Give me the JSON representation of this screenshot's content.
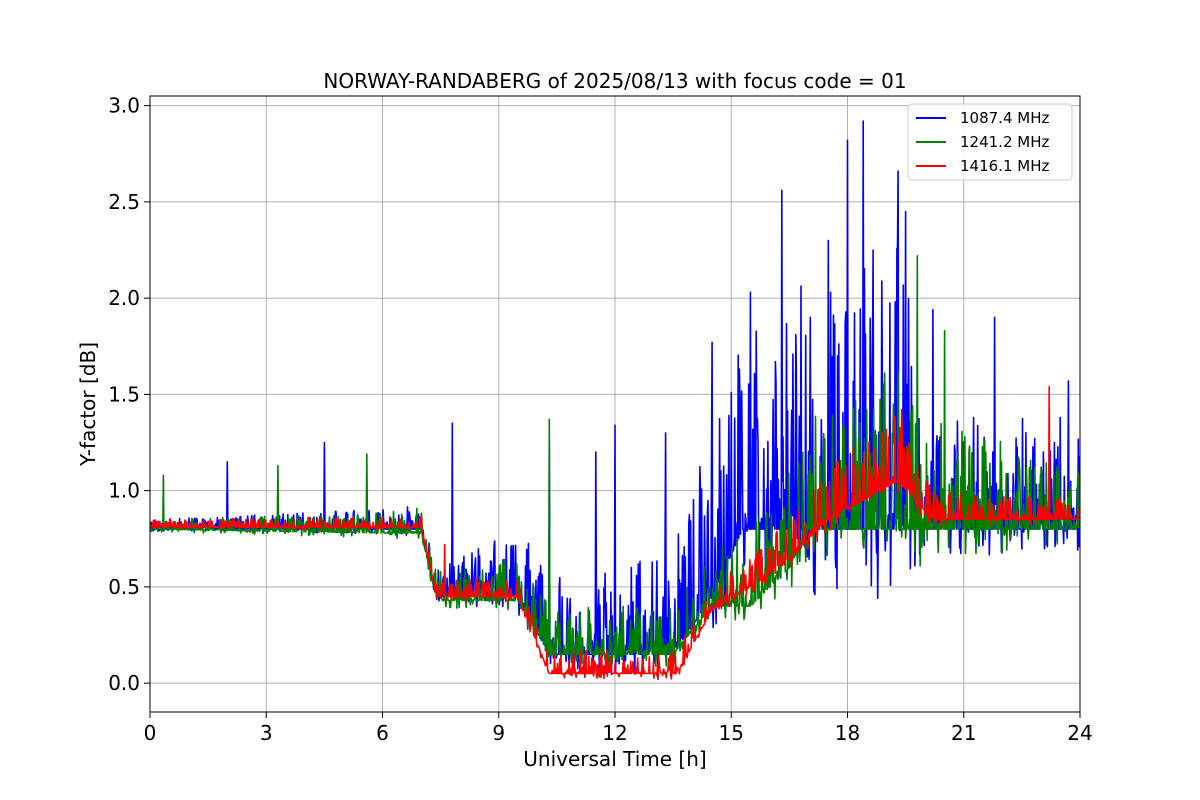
{
  "chart_data": {
    "type": "line",
    "title": "NORWAY-RANDABERG of 2025/08/13 with focus code = 01",
    "xlabel": "Universal Time [h]",
    "ylabel": "Y-factor [dB]",
    "xlim": [
      0,
      24
    ],
    "ylim": [
      -0.15,
      3.05
    ],
    "x_ticks": [
      0,
      3,
      6,
      9,
      12,
      15,
      18,
      21,
      24
    ],
    "y_ticks": [
      0.0,
      0.5,
      1.0,
      1.5,
      2.0,
      2.5,
      3.0
    ],
    "y_tick_labels": [
      "0.0",
      "0.5",
      "1.0",
      "1.5",
      "2.0",
      "2.5",
      "3.0"
    ],
    "grid": true,
    "legend_position": "top-right",
    "series": [
      {
        "name": "1087.4 MHz",
        "color": "#0000ff",
        "baseline": [
          [
            0,
            0.8
          ],
          [
            5,
            0.8
          ],
          [
            7,
            0.8
          ],
          [
            7.4,
            0.45
          ],
          [
            9.5,
            0.45
          ],
          [
            10.3,
            0.15
          ],
          [
            13.5,
            0.15
          ],
          [
            14.5,
            0.45
          ],
          [
            15.3,
            0.8
          ],
          [
            24,
            0.8
          ]
        ],
        "spread": [
          [
            0,
            0.05
          ],
          [
            5.5,
            0.1
          ],
          [
            7.4,
            0.15
          ],
          [
            10,
            0.4
          ],
          [
            13,
            0.5
          ],
          [
            15.2,
            1.0
          ],
          [
            17,
            1.4
          ],
          [
            18.5,
            1.8
          ],
          [
            19.5,
            1.5
          ],
          [
            20,
            0.6
          ],
          [
            22,
            0.6
          ],
          [
            24,
            0.6
          ]
        ],
        "peaks": [
          [
            2.0,
            1.15
          ],
          [
            4.5,
            1.25
          ],
          [
            7.8,
            1.35
          ],
          [
            10.3,
            1.24
          ],
          [
            11.5,
            1.2
          ],
          [
            12.0,
            1.34
          ],
          [
            13.3,
            1.3
          ],
          [
            14.5,
            1.77
          ],
          [
            15.5,
            2.03
          ],
          [
            16.3,
            2.56
          ],
          [
            17.5,
            2.3
          ],
          [
            18.0,
            2.82
          ],
          [
            18.4,
            2.92
          ],
          [
            19.3,
            2.66
          ],
          [
            19.5,
            2.45
          ],
          [
            20.2,
            1.94
          ],
          [
            21.8,
            1.9
          ],
          [
            23.7,
            1.57
          ],
          [
            24.0,
            1.18
          ]
        ]
      },
      {
        "name": "1241.2 MHz",
        "color": "#008000",
        "baseline": [
          [
            0,
            0.8
          ],
          [
            6,
            0.78
          ],
          [
            7.0,
            0.78
          ],
          [
            7.4,
            0.43
          ],
          [
            9.5,
            0.43
          ],
          [
            10.3,
            0.15
          ],
          [
            13.5,
            0.15
          ],
          [
            14.5,
            0.4
          ],
          [
            15.5,
            0.4
          ],
          [
            16.5,
            0.6
          ],
          [
            17.0,
            0.8
          ],
          [
            24,
            0.8
          ]
        ],
        "spread": [
          [
            0,
            0.05
          ],
          [
            5.5,
            0.1
          ],
          [
            7.4,
            0.15
          ],
          [
            10.0,
            0.25
          ],
          [
            12.0,
            0.25
          ],
          [
            13.5,
            0.25
          ],
          [
            15.0,
            0.35
          ],
          [
            17.0,
            0.6
          ],
          [
            18.5,
            0.7
          ],
          [
            19.7,
            1.0
          ],
          [
            20.2,
            0.6
          ],
          [
            22.0,
            0.5
          ],
          [
            24.0,
            0.3
          ]
        ],
        "peaks": [
          [
            0.35,
            1.08
          ],
          [
            3.3,
            1.13
          ],
          [
            5.6,
            1.19
          ],
          [
            10.3,
            1.37
          ],
          [
            19.8,
            2.22
          ],
          [
            20.5,
            1.83
          ]
        ]
      },
      {
        "name": "1416.1 MHz",
        "color": "#ff0000",
        "baseline": [
          [
            0,
            0.81
          ],
          [
            7.0,
            0.81
          ],
          [
            7.4,
            0.45
          ],
          [
            9.5,
            0.45
          ],
          [
            10.3,
            0.05
          ],
          [
            13.6,
            0.05
          ],
          [
            14.5,
            0.38
          ],
          [
            15.5,
            0.5
          ],
          [
            16.5,
            0.65
          ],
          [
            17.5,
            0.85
          ],
          [
            19.3,
            1.05
          ],
          [
            20.2,
            0.85
          ],
          [
            24,
            0.85
          ]
        ],
        "spread": [
          [
            0,
            0.04
          ],
          [
            7.0,
            0.06
          ],
          [
            8.0,
            0.1
          ],
          [
            10.5,
            0.12
          ],
          [
            13.5,
            0.12
          ],
          [
            15.0,
            0.15
          ],
          [
            16.5,
            0.2
          ],
          [
            18.0,
            0.3
          ],
          [
            19.3,
            0.35
          ],
          [
            20.2,
            0.15
          ],
          [
            24,
            0.1
          ]
        ],
        "peaks": [
          [
            7.6,
            0.72
          ],
          [
            19.4,
            1.42
          ],
          [
            23.2,
            1.54
          ]
        ]
      }
    ]
  }
}
